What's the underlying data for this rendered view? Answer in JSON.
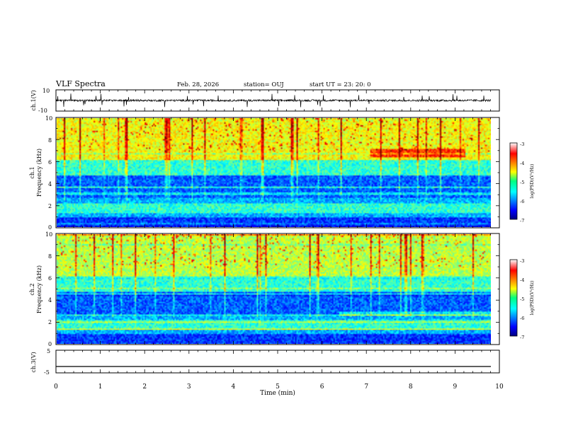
{
  "header": {
    "title": "VLF Spectra",
    "date": "Feb. 28, 2026",
    "station": "station= OUJ",
    "start_label": "start  UT  =   23: 20: 0"
  },
  "chart_data": [
    {
      "type": "line",
      "title": "",
      "ylabel": "ch.1(V)",
      "xlim": [
        0,
        10
      ],
      "ylim": [
        -10,
        10
      ],
      "y_ticks": [
        "10",
        "-10"
      ],
      "series": [
        {
          "name": "ch.1 waveform",
          "baseline": 0,
          "noise_amplitude": 1.5,
          "spike_amplitude": 6
        }
      ]
    },
    {
      "type": "heatmap",
      "ylabel": "ch.1",
      "ylabel2": "Frequency (kHz)",
      "xlim": [
        0,
        10
      ],
      "ylim": [
        0,
        10
      ],
      "y_ticks": [
        "0",
        "2",
        "4",
        "6",
        "8",
        "10"
      ],
      "colorbar": {
        "label": "log(PSD)(V²/Hz)",
        "range": [
          -7,
          -3
        ],
        "ticks": [
          "-3",
          "-4",
          "-5",
          "-6",
          "-7"
        ]
      }
    },
    {
      "type": "heatmap",
      "ylabel": "ch.2",
      "ylabel2": "Frequency (kHz)",
      "xlim": [
        0,
        10
      ],
      "ylim": [
        0,
        10
      ],
      "y_ticks": [
        "0",
        "2",
        "4",
        "6",
        "8",
        "10"
      ],
      "colorbar": {
        "label": "log(PSD)(V²/Hz)",
        "range": [
          -7,
          -3
        ],
        "ticks": [
          "-3",
          "-4",
          "-5",
          "-6",
          "-7"
        ]
      }
    },
    {
      "type": "line",
      "ylabel": "ch.3(V)",
      "xlim": [
        0,
        10
      ],
      "ylim": [
        -5,
        5
      ],
      "y_ticks": [
        "5",
        "-5"
      ],
      "series": [
        {
          "name": "ch.3 level",
          "values": [
            -2.2,
            -2.2
          ]
        }
      ]
    }
  ],
  "x_axis": {
    "label": "Time (min)",
    "ticks": [
      "0",
      "1",
      "2",
      "3",
      "4",
      "5",
      "6",
      "7",
      "8",
      "9",
      "10"
    ]
  },
  "colors": {
    "axis": "#000000",
    "trace": "#000000"
  }
}
